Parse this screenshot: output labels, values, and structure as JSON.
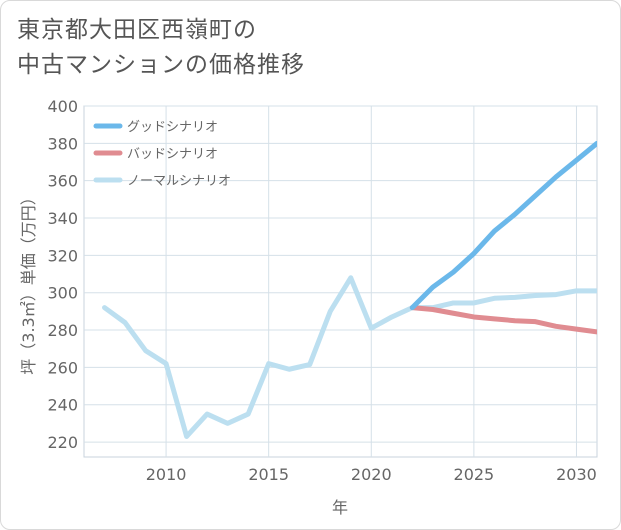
{
  "title_line1": "東京都大田区西嶺町の",
  "title_line2": "中古マンションの価格推移",
  "chart_data": {
    "type": "line",
    "title": "東京都大田区西嶺町の中古マンションの価格推移",
    "xlabel": "年",
    "ylabel": "坪（3.3㎡）単価（万円）",
    "xlim": [
      2006,
      2031
    ],
    "ylim": [
      212,
      400
    ],
    "xticks": [
      2010,
      2015,
      2020,
      2025,
      2030
    ],
    "yticks": [
      220,
      240,
      260,
      280,
      300,
      320,
      340,
      360,
      380,
      400
    ],
    "grid": true,
    "legend_position": "top-left",
    "series": [
      {
        "name": "グッドシナリオ",
        "color": "#6bb8ea",
        "x": [
          2022,
          2023,
          2024,
          2025,
          2026,
          2027,
          2028,
          2029,
          2030,
          2031
        ],
        "y": [
          292,
          303,
          311,
          321,
          333,
          342,
          352,
          362,
          371,
          380
        ]
      },
      {
        "name": "バッドシナリオ",
        "color": "#e08c91",
        "x": [
          2022,
          2023,
          2024,
          2025,
          2026,
          2027,
          2028,
          2029,
          2030,
          2031
        ],
        "y": [
          292,
          291,
          289,
          287,
          286,
          285,
          284.5,
          282,
          280.5,
          279
        ]
      },
      {
        "name": "ノーマルシナリオ",
        "color": "#bcdff0",
        "x": [
          2007,
          2008,
          2009,
          2010,
          2011,
          2012,
          2013,
          2014,
          2015,
          2016,
          2017,
          2018,
          2019,
          2020,
          2021,
          2022,
          2023,
          2024,
          2025,
          2026,
          2027,
          2028,
          2029,
          2030,
          2031
        ],
        "y": [
          292,
          284,
          269,
          262,
          223,
          235,
          230,
          235,
          262,
          259,
          261.5,
          290,
          308,
          281,
          287,
          292,
          292,
          294.5,
          294.5,
          297,
          297.5,
          298.5,
          299,
          301,
          301
        ]
      }
    ]
  }
}
